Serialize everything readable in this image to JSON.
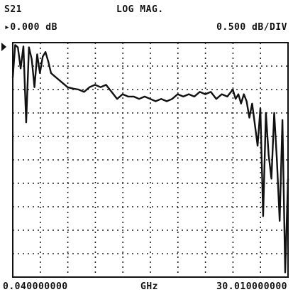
{
  "header": {
    "parameter": "S21",
    "format": "LOG MAG.",
    "reference": "▸0.000 dB",
    "scale": "0.500 dB/DIV"
  },
  "footer": {
    "start": "0.040000000",
    "unit": "GHz",
    "stop": "30.010000000"
  },
  "chart_data": {
    "type": "line",
    "title": "",
    "xlabel": "GHz",
    "ylabel": "",
    "xlim": [
      0.04,
      30.01
    ],
    "ylim": [
      -5.0,
      0.0
    ],
    "grid": true,
    "gridlines": {
      "x_divisions": 10,
      "y_divisions": 10
    },
    "series": [
      {
        "x": [
          0.04,
          0.3,
          0.6,
          0.9,
          1.2,
          1.5,
          1.8,
          2.1,
          2.4,
          2.7,
          3.0,
          3.3,
          3.6,
          3.9,
          4.2,
          4.5,
          4.8,
          5.4,
          6.0,
          6.6,
          7.2,
          7.8,
          8.4,
          9.0,
          9.6,
          10.2,
          10.8,
          11.4,
          12.0,
          12.6,
          13.2,
          13.8,
          14.4,
          15.0,
          15.6,
          16.2,
          16.8,
          17.4,
          18.0,
          18.6,
          19.2,
          19.8,
          20.4,
          21.0,
          21.6,
          22.2,
          22.8,
          23.4,
          24.0,
          24.3,
          24.6,
          24.9,
          25.2,
          25.5,
          25.8,
          26.1,
          26.4,
          26.7,
          27.0,
          27.3,
          27.6,
          27.9,
          28.2,
          28.5,
          28.8,
          29.1,
          29.4,
          29.7,
          30.01
        ],
        "y": [
          -0.75,
          -0.05,
          -0.1,
          -0.55,
          -0.08,
          -1.7,
          -0.1,
          -0.35,
          -0.95,
          -0.25,
          -0.65,
          -0.3,
          -0.2,
          -0.4,
          -0.65,
          -0.7,
          -0.75,
          -0.85,
          -0.95,
          -0.98,
          -1.0,
          -1.05,
          -0.95,
          -0.9,
          -0.95,
          -0.9,
          -1.05,
          -1.2,
          -1.1,
          -1.15,
          -1.15,
          -1.2,
          -1.15,
          -1.2,
          -1.25,
          -1.2,
          -1.25,
          -1.2,
          -1.1,
          -1.15,
          -1.1,
          -1.15,
          -1.05,
          -1.1,
          -1.05,
          -1.2,
          -1.1,
          -1.15,
          -1.0,
          -1.2,
          -1.1,
          -1.3,
          -1.1,
          -1.25,
          -1.6,
          -1.3,
          -1.75,
          -2.2,
          -1.4,
          -3.7,
          -1.5,
          -2.4,
          -2.9,
          -1.5,
          -2.5,
          -3.8,
          -1.65,
          -4.9,
          -2.9
        ]
      }
    ]
  }
}
